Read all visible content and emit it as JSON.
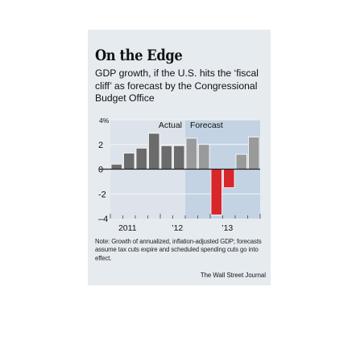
{
  "title": "On the Edge",
  "subtitle": "GDP growth, if the U.S. hits the ‘fiscal cliff’ as forecast by the Congressional Budget Office",
  "note": "Note: Growth of annualized, inflation-adjusted GDP; forecasts assume tax cuts expire and scheduled spending cuts go into effect.",
  "source": "The Wall Street Journal",
  "chart_data": {
    "type": "bar",
    "ylabel": "4%",
    "ylim": [
      -4,
      4
    ],
    "y_ticks": [
      {
        "value": 4,
        "label": "4%"
      },
      {
        "value": 2,
        "label": "2"
      },
      {
        "value": 0,
        "label": "0"
      },
      {
        "value": -2,
        "label": "-2"
      },
      {
        "value": -4,
        "label": "–4"
      }
    ],
    "grid": true,
    "x_tick_labels": [
      {
        "label": "2011",
        "quarter": 1
      },
      {
        "label": "’12",
        "quarter": 5
      },
      {
        "label": "’13",
        "quarter": 9
      }
    ],
    "regions": [
      {
        "label": "Actual",
        "from_quarter": 0,
        "to_quarter": 6
      },
      {
        "label": "Forecast",
        "from_quarter": 6,
        "to_quarter": 12
      }
    ],
    "values": [
      0.4,
      1.3,
      1.7,
      2.9,
      1.9,
      1.9,
      2.5,
      2.0,
      -3.7,
      -1.5,
      1.2,
      2.6
    ],
    "colors": {
      "actual": "#6b6b6b",
      "forecast": "#9a9a9a",
      "negative": "#d8262a",
      "actual_bg": "#dde3ea",
      "forecast_bg": "#c3d3e4"
    }
  }
}
